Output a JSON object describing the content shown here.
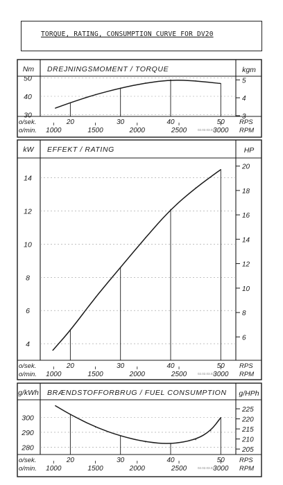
{
  "header": {
    "title": "TORQUE, RATING, CONSUMPTION CURVE FOR DV20"
  },
  "stamp": "02.02.03.01.01",
  "axis_rows": {
    "rps_unit_left": "o/sek.",
    "rpm_unit_left": "o/min.",
    "rps_unit_right": "RPS",
    "rpm_unit_right": "RPM",
    "rps_ticks": [
      "20",
      "30",
      "40",
      "50"
    ],
    "rpm_ticks": [
      "1000",
      "1500",
      "2000",
      "2500",
      "3000"
    ]
  },
  "chart_data": [
    {
      "type": "line",
      "title": "DREJNINGSMOMENT / TORQUE",
      "left_unit": "Nm",
      "right_unit": "kgm",
      "x_unit": "RPS",
      "xlim": [
        14,
        53
      ],
      "ylim": [
        29,
        51
      ],
      "grid": true,
      "left_ticks": [
        30,
        40,
        50
      ],
      "right_ticks": [
        {
          "label": "3",
          "value": 29.4
        },
        {
          "label": "4",
          "value": 39.2
        },
        {
          "label": "5",
          "value": 49.0
        }
      ],
      "x": [
        17,
        20,
        25,
        30,
        35,
        40,
        45,
        50
      ],
      "y": [
        33.5,
        36.5,
        41.0,
        44.5,
        47.3,
        49.0,
        48.5,
        47.0
      ]
    },
    {
      "type": "line",
      "title": "EFFEKT / RATING",
      "left_unit": "kW",
      "right_unit": "HP",
      "x_unit": "RPS",
      "xlim": [
        14,
        53
      ],
      "ylim": [
        3,
        15.2
      ],
      "grid": true,
      "left_ticks": [
        4,
        6,
        8,
        10,
        12,
        14
      ],
      "right_ticks": [
        {
          "label": "6",
          "value": 4.41
        },
        {
          "label": "8",
          "value": 5.88
        },
        {
          "label": "10",
          "value": 7.35
        },
        {
          "label": "12",
          "value": 8.83
        },
        {
          "label": "14",
          "value": 10.3
        },
        {
          "label": "16",
          "value": 11.77
        },
        {
          "label": "18",
          "value": 13.24
        },
        {
          "label": "20",
          "value": 14.71
        }
      ],
      "x": [
        16.5,
        20,
        25,
        30,
        35,
        40,
        45,
        50
      ],
      "y": [
        3.6,
        4.8,
        6.8,
        8.6,
        10.4,
        12.1,
        13.4,
        14.5
      ]
    },
    {
      "type": "line",
      "title": "BRÆNDSTOFFORBRUG / FUEL CONSUMPTION",
      "left_unit": "g/kWh",
      "right_unit": "g/HPh",
      "x_unit": "RPS",
      "xlim": [
        14,
        53
      ],
      "ylim": [
        275,
        312
      ],
      "grid": true,
      "left_ticks": [
        280,
        290,
        300
      ],
      "right_ticks": [
        {
          "label": "205",
          "value": 278.7
        },
        {
          "label": "210",
          "value": 285.5
        },
        {
          "label": "215",
          "value": 292.3
        },
        {
          "label": "220",
          "value": 299.1
        },
        {
          "label": "225",
          "value": 305.9
        }
      ],
      "x": [
        17,
        20,
        25,
        30,
        35,
        40,
        45,
        48,
        50
      ],
      "y": [
        308,
        302,
        293.5,
        287.5,
        283.5,
        282.0,
        285.0,
        291.0,
        300.0
      ]
    }
  ]
}
